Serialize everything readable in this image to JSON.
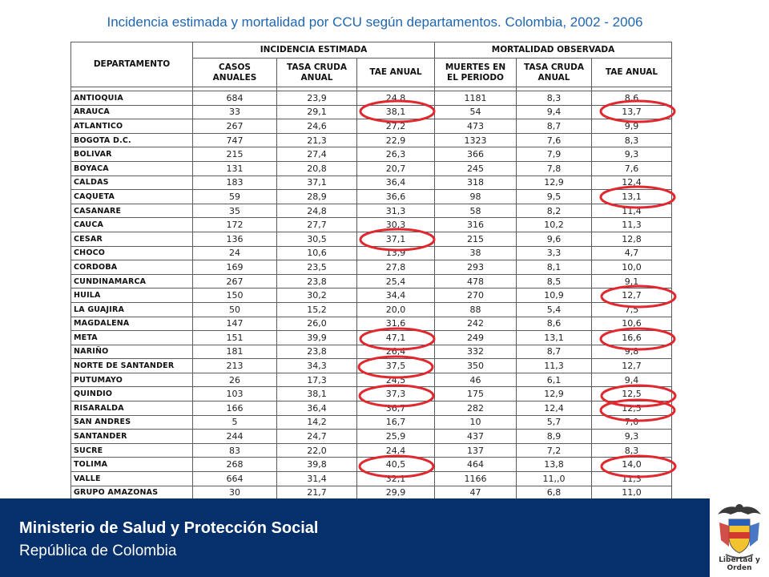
{
  "title": "Incidencia estimada y mortalidad por CCU según departamentos. Colombia, 2002 - 2006",
  "table": {
    "group_headers": {
      "incidence": "INCIDENCIA ESTIMADA",
      "mortality": "MORTALIDAD OBSERVADA"
    },
    "col_headers": {
      "department": "DEPARTAMENTO",
      "cases": [
        "CASOS",
        "ANUALES"
      ],
      "crude_inc": [
        "TASA CRUDA",
        "ANUAL"
      ],
      "tae_inc": "TAE ANUAL",
      "deaths": [
        "MUERTES EN",
        "EL PERIODO"
      ],
      "crude_mort": [
        "TASA CRUDA",
        "ANUAL"
      ],
      "tae_mort": "TAE ANUAL"
    },
    "rows": [
      {
        "dept": "ANTIOQUIA",
        "cases": "684",
        "crude_inc": "23,9",
        "tae_inc": "24,8",
        "deaths": "1181",
        "crude_mort": "8,3",
        "tae_mort": "8,6"
      },
      {
        "dept": "ARAUCA",
        "cases": "33",
        "crude_inc": "29,1",
        "tae_inc": "38,1",
        "deaths": "54",
        "crude_mort": "9,4",
        "tae_mort": "13,7"
      },
      {
        "dept": "ATLANTICO",
        "cases": "267",
        "crude_inc": "24,6",
        "tae_inc": "27,2",
        "deaths": "473",
        "crude_mort": "8,7",
        "tae_mort": "9,9"
      },
      {
        "dept": "BOGOTA D.C.",
        "cases": "747",
        "crude_inc": "21,3",
        "tae_inc": "22,9",
        "deaths": "1323",
        "crude_mort": "7,6",
        "tae_mort": "8,3"
      },
      {
        "dept": "BOLIVAR",
        "cases": "215",
        "crude_inc": "27,4",
        "tae_inc": "26,3",
        "deaths": "366",
        "crude_mort": "7,9",
        "tae_mort": "9,3"
      },
      {
        "dept": "BOYACA",
        "cases": "131",
        "crude_inc": "20,8",
        "tae_inc": "20,7",
        "deaths": "245",
        "crude_mort": "7,8",
        "tae_mort": "7,6"
      },
      {
        "dept": "CALDAS",
        "cases": "183",
        "crude_inc": "37,1",
        "tae_inc": "36,4",
        "deaths": "318",
        "crude_mort": "12,9",
        "tae_mort": "12,4"
      },
      {
        "dept": "CAQUETA",
        "cases": "59",
        "crude_inc": "28,9",
        "tae_inc": "36,6",
        "deaths": "98",
        "crude_mort": "9,5",
        "tae_mort": "13,1"
      },
      {
        "dept": "CASANARE",
        "cases": "35",
        "crude_inc": "24,8",
        "tae_inc": "31,3",
        "deaths": "58",
        "crude_mort": "8,2",
        "tae_mort": "11,4"
      },
      {
        "dept": "CAUCA",
        "cases": "172",
        "crude_inc": "27,7",
        "tae_inc": "30,3",
        "deaths": "316",
        "crude_mort": "10,2",
        "tae_mort": "11,3"
      },
      {
        "dept": "CESAR",
        "cases": "136",
        "crude_inc": "30,5",
        "tae_inc": "37,1",
        "deaths": "215",
        "crude_mort": "9,6",
        "tae_mort": "12,8"
      },
      {
        "dept": "CHOCO",
        "cases": "24",
        "crude_inc": "10,6",
        "tae_inc": "13,9",
        "deaths": "38",
        "crude_mort": "3,3",
        "tae_mort": "4,7"
      },
      {
        "dept": "CORDOBA",
        "cases": "169",
        "crude_inc": "23,5",
        "tae_inc": "27,8",
        "deaths": "293",
        "crude_mort": "8,1",
        "tae_mort": "10,0"
      },
      {
        "dept": "CUNDINAMARCA",
        "cases": "267",
        "crude_inc": "23,8",
        "tae_inc": "25,4",
        "deaths": "478",
        "crude_mort": "8,5",
        "tae_mort": "9,1"
      },
      {
        "dept": "HUILA",
        "cases": "150",
        "crude_inc": "30,2",
        "tae_inc": "34,4",
        "deaths": "270",
        "crude_mort": "10,9",
        "tae_mort": "12,7"
      },
      {
        "dept": "LA GUAJIRA",
        "cases": "50",
        "crude_inc": "15,2",
        "tae_inc": "20,0",
        "deaths": "88",
        "crude_mort": "5,4",
        "tae_mort": "7,5"
      },
      {
        "dept": "MAGDALENA",
        "cases": "147",
        "crude_inc": "26,0",
        "tae_inc": "31,6",
        "deaths": "242",
        "crude_mort": "8,6",
        "tae_mort": "10,6"
      },
      {
        "dept": "META",
        "cases": "151",
        "crude_inc": "39,9",
        "tae_inc": "47,1",
        "deaths": "249",
        "crude_mort": "13,1",
        "tae_mort": "16,6"
      },
      {
        "dept": "NARIÑO",
        "cases": "181",
        "crude_inc": "23,8",
        "tae_inc": "26,4",
        "deaths": "332",
        "crude_mort": "8,7",
        "tae_mort": "9,8"
      },
      {
        "dept": "NORTE DE SANTANDER",
        "cases": "213",
        "crude_inc": "34,3",
        "tae_inc": "37,5",
        "deaths": "350",
        "crude_mort": "11,3",
        "tae_mort": "12,7"
      },
      {
        "dept": "PUTUMAYO",
        "cases": "26",
        "crude_inc": "17,3",
        "tae_inc": "24,5",
        "deaths": "46",
        "crude_mort": "6,1",
        "tae_mort": "9,4"
      },
      {
        "dept": "QUINDIO",
        "cases": "103",
        "crude_inc": "38,1",
        "tae_inc": "37,3",
        "deaths": "175",
        "crude_mort": "12,9",
        "tae_mort": "12,5"
      },
      {
        "dept": "RISARALDA",
        "cases": "166",
        "crude_inc": "36,4",
        "tae_inc": "36,7",
        "deaths": "282",
        "crude_mort": "12,4",
        "tae_mort": "12,5"
      },
      {
        "dept": "SAN ANDRES",
        "cases": "5",
        "crude_inc": "14,2",
        "tae_inc": "16,7",
        "deaths": "10",
        "crude_mort": "5,7",
        "tae_mort": "7,0"
      },
      {
        "dept": "SANTANDER",
        "cases": "244",
        "crude_inc": "24,7",
        "tae_inc": "25,9",
        "deaths": "437",
        "crude_mort": "8,9",
        "tae_mort": "9,3"
      },
      {
        "dept": "SUCRE",
        "cases": "83",
        "crude_inc": "22,0",
        "tae_inc": "24,4",
        "deaths": "137",
        "crude_mort": "7,2",
        "tae_mort": "8,3"
      },
      {
        "dept": "TOLIMA",
        "cases": "268",
        "crude_inc": "39,8",
        "tae_inc": "40,5",
        "deaths": "464",
        "crude_mort": "13,8",
        "tae_mort": "14,0"
      },
      {
        "dept": "VALLE",
        "cases": "664",
        "crude_inc": "31,4",
        "tae_inc": "32,1",
        "deaths": "1166",
        "crude_mort": "11,,0",
        "tae_mort": "11,3"
      },
      {
        "dept": "GRUPO AMAZONAS",
        "cases": "30",
        "crude_inc": "21,7",
        "tae_inc": "29,9",
        "deaths": "47",
        "crude_mort": "6,8",
        "tae_mort": "11,0"
      }
    ]
  },
  "highlight_color": "#e0282e",
  "footer": {
    "line1": "Ministerio de Salud y Protección Social",
    "line2": "República de Colombia",
    "motto": "Libertad y Orden"
  }
}
